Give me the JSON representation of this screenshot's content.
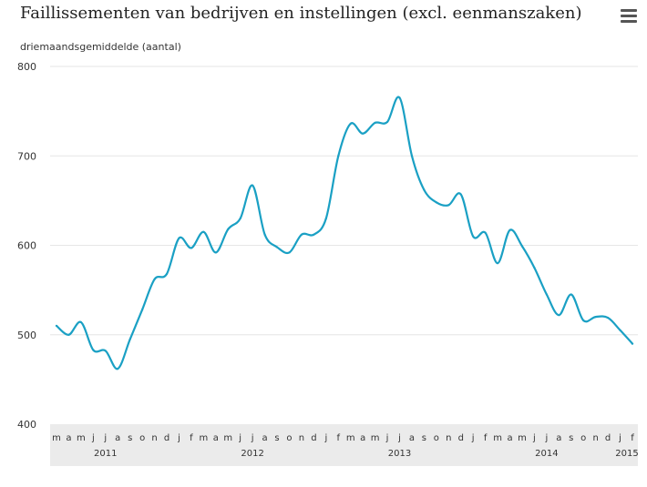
{
  "header": {
    "title": "Faillissementen van bedrijven en instellingen (excl. eenmanszaken)",
    "subtitle": "driemaandsgemiddelde (aantal)",
    "menu_icon": "hamburger-menu-icon"
  },
  "colors": {
    "line": "#1aa0c4",
    "axis_band": "#ebebeb",
    "grid": "#e6e6e6"
  },
  "chart_data": {
    "type": "line",
    "title": "Faillissementen van bedrijven en instellingen (excl. eenmanszaken)",
    "ylabel": "driemaandsgemiddelde (aantal)",
    "xlabel": "",
    "ylim": [
      400,
      800
    ],
    "y_ticks": [
      400,
      500,
      600,
      700,
      800
    ],
    "grid": true,
    "legend": "none",
    "x_month_labels": [
      "m",
      "a",
      "m",
      "j",
      "j",
      "a",
      "s",
      "o",
      "n",
      "d",
      "j",
      "f",
      "m",
      "a",
      "m",
      "j",
      "j",
      "a",
      "s",
      "o",
      "n",
      "d",
      "j",
      "f",
      "m",
      "a",
      "m",
      "j",
      "j",
      "a",
      "s",
      "o",
      "n",
      "d",
      "j",
      "f",
      "m",
      "a",
      "m",
      "j",
      "j",
      "a",
      "s",
      "o",
      "n",
      "d",
      "j",
      "f"
    ],
    "x_year_labels": [
      {
        "label": "2011",
        "month_index": 4
      },
      {
        "label": "2012",
        "month_index": 16
      },
      {
        "label": "2013",
        "month_index": 28
      },
      {
        "label": "2014",
        "month_index": 40
      },
      {
        "label": "2015",
        "month_index": 47
      }
    ],
    "series": [
      {
        "values": [
          510,
          500,
          514,
          483,
          482,
          462,
          495,
          528,
          562,
          568,
          608,
          597,
          615,
          592,
          618,
          630,
          667,
          612,
          598,
          592,
          612,
          612,
          630,
          700,
          736,
          725,
          737,
          738,
          765,
          700,
          662,
          648,
          645,
          657,
          610,
          614,
          580,
          617,
          599,
          575,
          545,
          522,
          545,
          516,
          520,
          519,
          505,
          490
        ]
      }
    ]
  }
}
